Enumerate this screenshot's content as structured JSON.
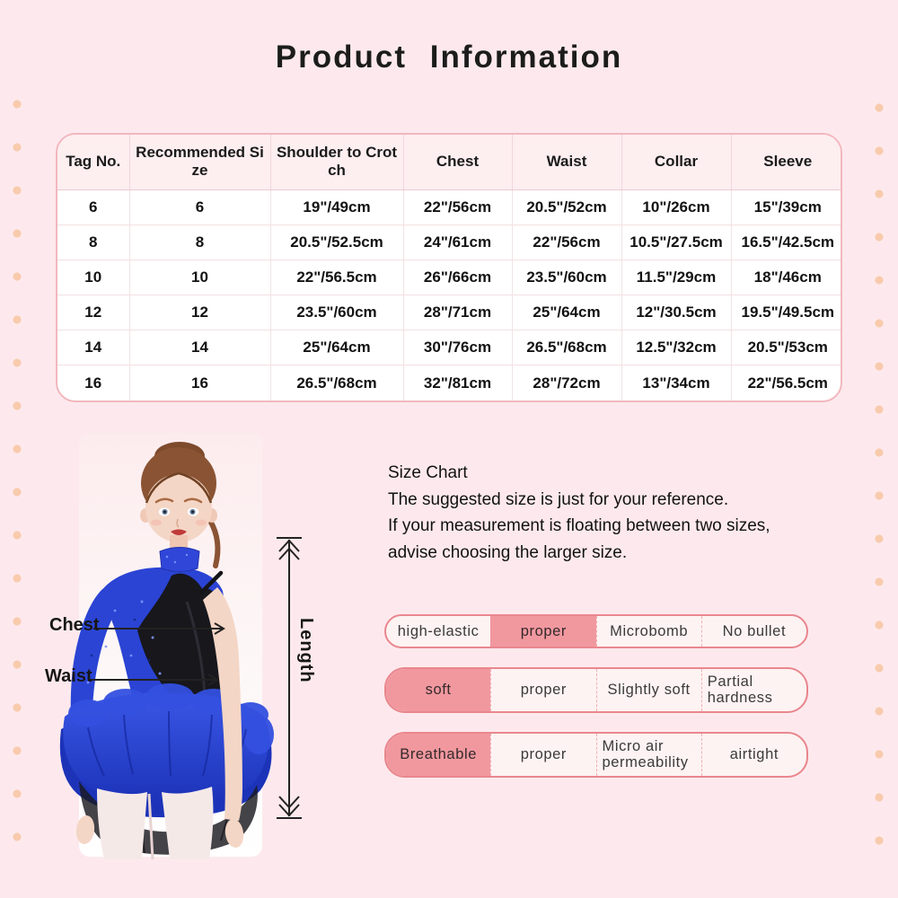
{
  "title": "Product Information",
  "colors": {
    "page_bg": "#fde9ed",
    "dot": "#f8cbad",
    "table_border": "#f2b7be",
    "table_header_bg": "#fdeef0",
    "pill_border": "#e9878e",
    "pill_highlight": "#f1989f",
    "pill_light": "#fdf3f2",
    "text_dark": "#1e1e1e",
    "dress_blue": "#2b44d4"
  },
  "table": {
    "headers": [
      "Tag No.",
      "Recommended Si\nze",
      "Shoulder to Crot\nch",
      "Chest",
      "Waist",
      "Collar",
      "Sleeve"
    ],
    "rows": [
      [
        "6",
        "6",
        "19\"/49cm",
        "22\"/56cm",
        "20.5\"/52cm",
        "10\"/26cm",
        "15\"/39cm"
      ],
      [
        "8",
        "8",
        "20.5\"/52.5cm",
        "24\"/61cm",
        "22\"/56cm",
        "10.5\"/27.5cm",
        "16.5\"/42.5cm"
      ],
      [
        "10",
        "10",
        "22\"/56.5cm",
        "26\"/66cm",
        "23.5\"/60cm",
        "11.5\"/29cm",
        "18\"/46cm"
      ],
      [
        "12",
        "12",
        "23.5\"/60cm",
        "28\"/71cm",
        "25\"/64cm",
        "12\"/30.5cm",
        "19.5\"/49.5cm"
      ],
      [
        "14",
        "14",
        "25\"/64cm",
        "30\"/76cm",
        "26.5\"/68cm",
        "12.5\"/32cm",
        "20.5\"/53cm"
      ],
      [
        "16",
        "16",
        "26.5\"/68cm",
        "32\"/81cm",
        "28\"/72cm",
        "13\"/34cm",
        "22\"/56.5cm"
      ]
    ]
  },
  "size_note": {
    "heading": "Size Chart",
    "lines": [
      "The suggested size is just for your reference.",
      "If your measurement is floating between two sizes,",
      "advise choosing the larger size."
    ]
  },
  "measurements": {
    "chest": "Chest",
    "waist": "Waist",
    "length": "Length"
  },
  "properties": [
    {
      "cells": [
        "high-elastic",
        "proper",
        "Microbomb",
        "No bullet"
      ],
      "highlight": 1
    },
    {
      "cells": [
        "soft",
        "proper",
        "Slightly soft",
        "Partial hardness"
      ],
      "highlight": 0
    },
    {
      "cells": [
        "Breathable",
        "proper",
        "Micro air permeability",
        "airtight"
      ],
      "highlight": 0
    }
  ]
}
